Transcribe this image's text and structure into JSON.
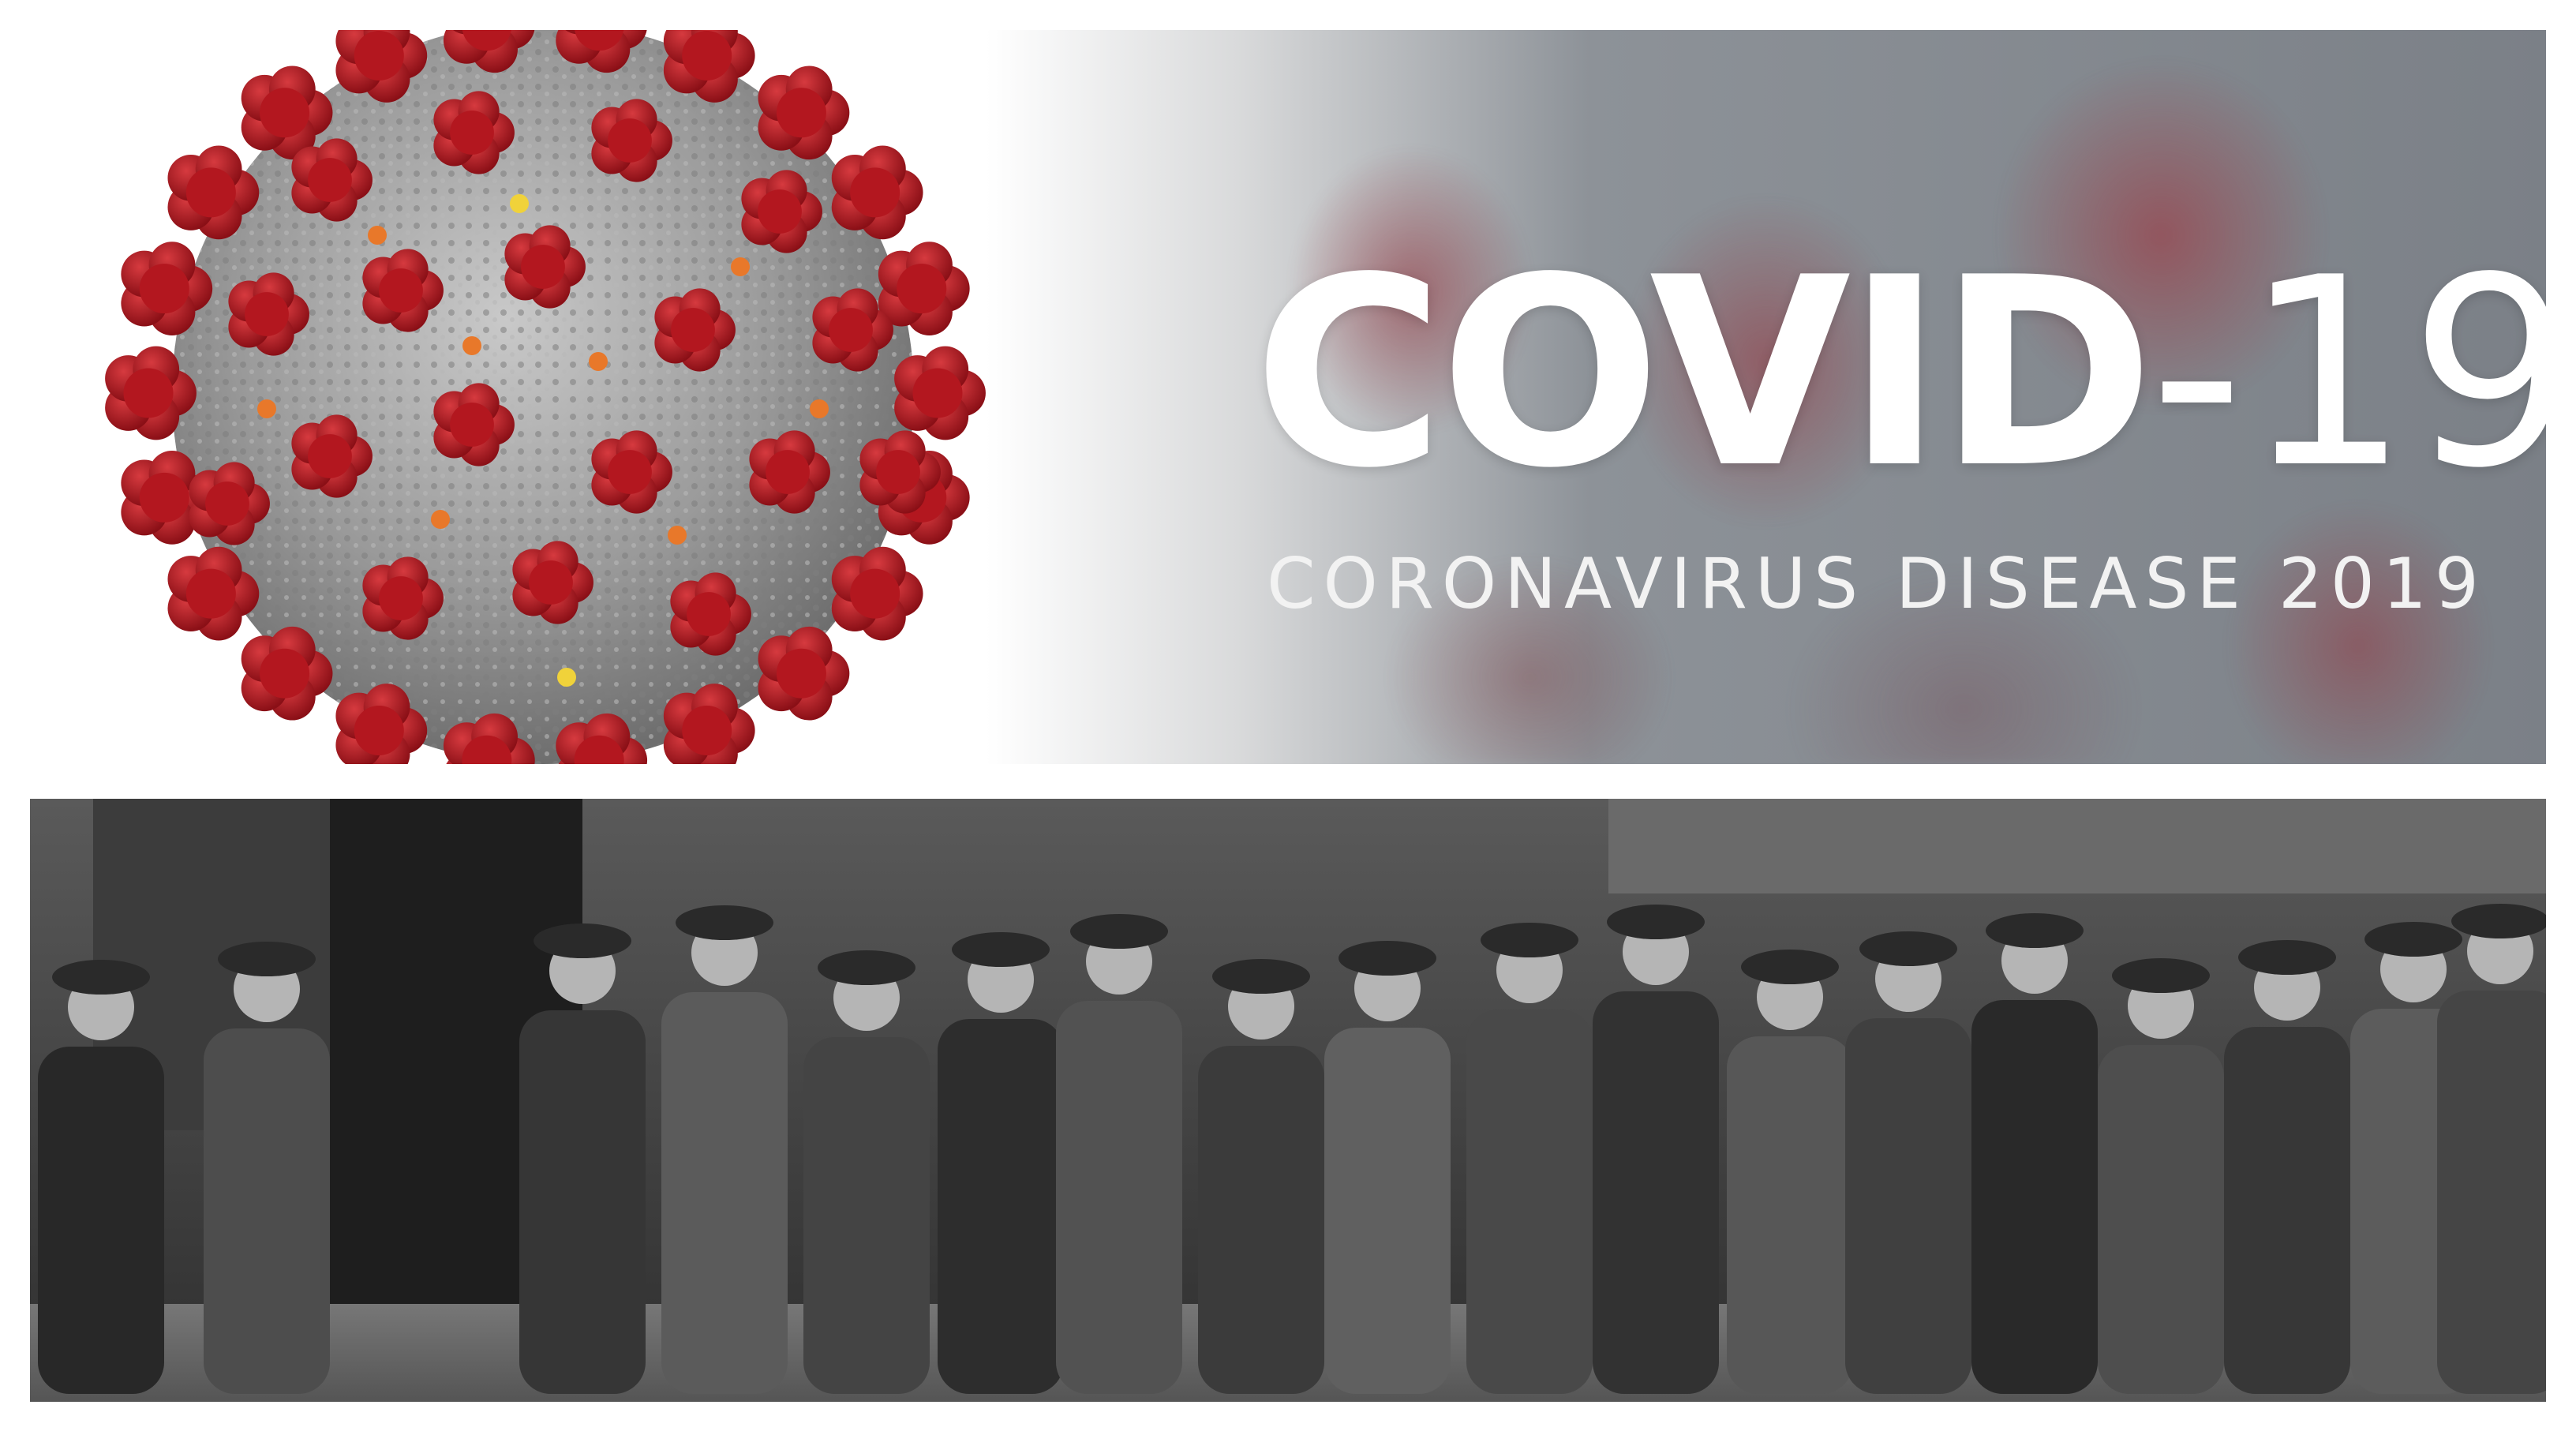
{
  "banner": {
    "title_word": "COVID",
    "title_dash": "-",
    "title_number": "19",
    "subtitle": "CORONAVIRUS DISEASE 2019"
  },
  "colors": {
    "virus_body": "#9a9a9a",
    "spike_red": "#b3171f",
    "spike_orange": "#e8782a",
    "spike_yellow": "#f0d23a",
    "banner_text": "#ffffff"
  },
  "images": {
    "top": "coronavirus-particle-illustration",
    "bottom": "black-and-white-photo-men-in-breadline"
  }
}
